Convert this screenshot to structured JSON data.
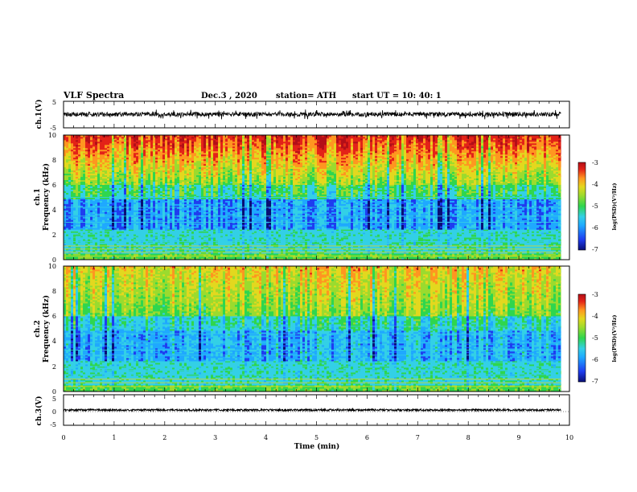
{
  "header": {
    "title": "VLF Spectra",
    "date": "Dec.3 , 2020",
    "station": "station= ATH",
    "start": "start UT = 10: 40: 1"
  },
  "colors": {
    "waveform": "#000000",
    "colormap": [
      "#0a0f75",
      "#1f3df0",
      "#1fa9ff",
      "#33d0e6",
      "#2fd64e",
      "#9bdb2e",
      "#e3d81e",
      "#ff9620",
      "#e32318",
      "#b30f18"
    ]
  },
  "chart_data": [
    {
      "type": "line",
      "panel": "ch1-waveform",
      "ylabel": "ch.1(V)",
      "ylim": [
        -5,
        5
      ],
      "yticks": [
        "5",
        "-5"
      ],
      "xlim": [
        0,
        10
      ],
      "x_end": 9.83,
      "mean": 0.1,
      "range": [
        -1.8,
        1.9
      ]
    },
    {
      "type": "heatmap",
      "panel": "ch1-spectrogram",
      "ylabel": "ch.1 Frequency (kHz)",
      "ylabel_line1": "ch.1",
      "ylabel_line2": "Frequency (kHz)",
      "ylim": [
        0,
        10
      ],
      "yticks": [
        "0",
        "2",
        "4",
        "6",
        "8",
        "10"
      ],
      "xlim": [
        0,
        10
      ],
      "x_end": 9.83,
      "colorbar": {
        "label": "log(PSD)(V²/Hz)",
        "range": [
          -7,
          -3
        ],
        "ticks": [
          "-3",
          "-4",
          "-5",
          "-6",
          "-7"
        ]
      }
    },
    {
      "type": "heatmap",
      "panel": "ch2-spectrogram",
      "ylabel": "ch.2 Frequency (kHz)",
      "ylabel_line1": "ch.2",
      "ylabel_line2": "Frequency (kHz)",
      "ylim": [
        0,
        10
      ],
      "yticks": [
        "0",
        "2",
        "4",
        "6",
        "8",
        "10"
      ],
      "xlim": [
        0,
        10
      ],
      "x_end": 9.83,
      "colorbar": {
        "label": "log(PSD)(V²/Hz)",
        "range": [
          -7,
          -3
        ],
        "ticks": [
          "-3",
          "-4",
          "-5",
          "-6",
          "-7"
        ]
      }
    },
    {
      "type": "line",
      "panel": "ch3-waveform",
      "ylabel": "ch.3(V)",
      "ylim": [
        -5,
        5
      ],
      "yticks": [
        "5",
        "0",
        "-5"
      ],
      "xlim": [
        0,
        10
      ],
      "x_end": 9.83,
      "mean": 0.0,
      "range": [
        -0.3,
        0.3
      ]
    }
  ],
  "xaxis": {
    "label": "Time (min)",
    "ticks": [
      "0",
      "1",
      "2",
      "3",
      "4",
      "5",
      "6",
      "7",
      "8",
      "9",
      "10"
    ]
  }
}
